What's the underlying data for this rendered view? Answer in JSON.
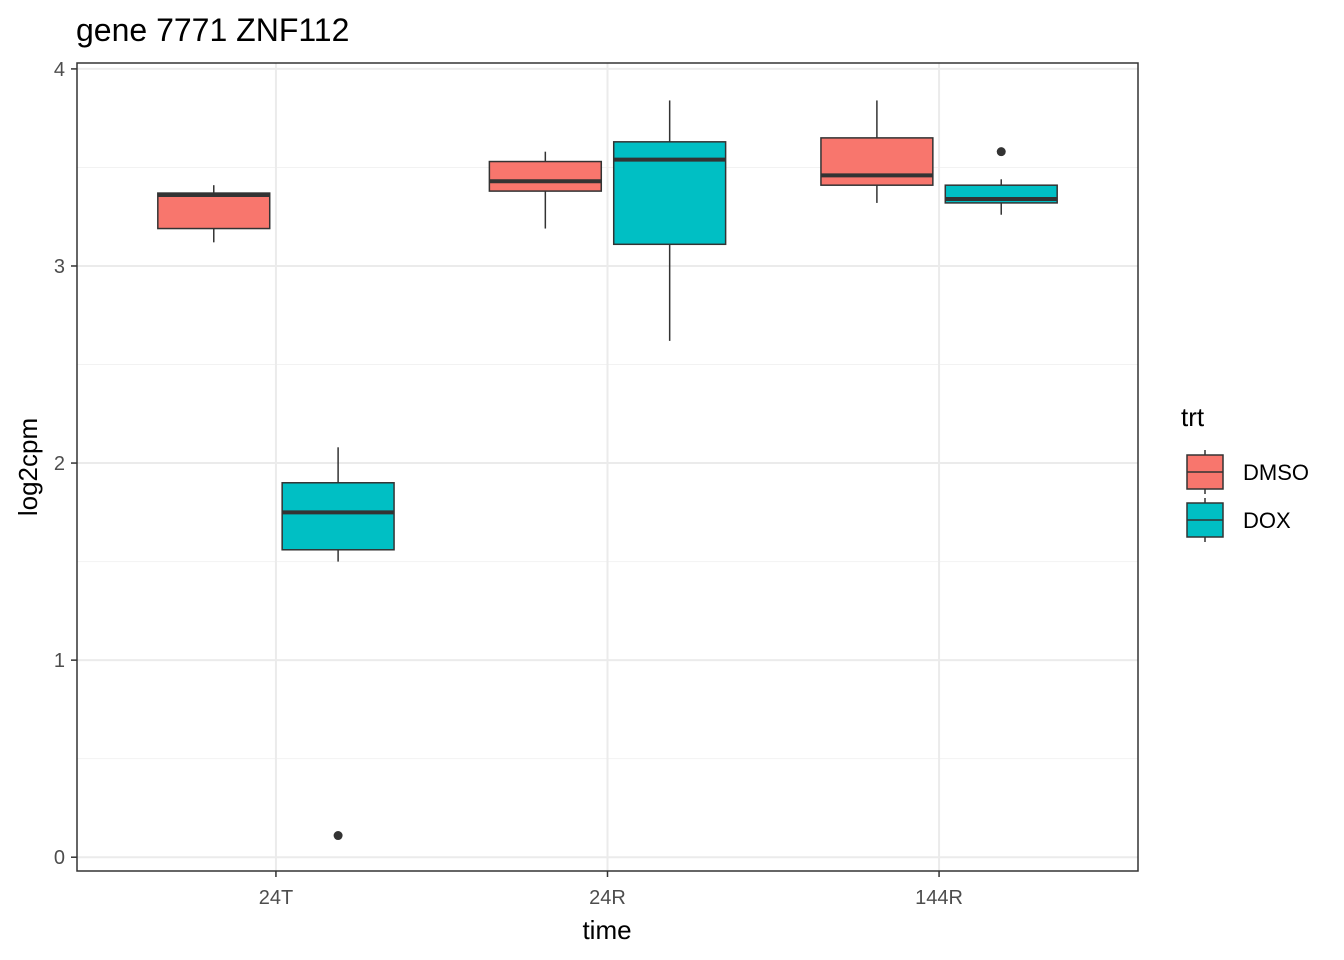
{
  "chart_data": {
    "type": "boxplot",
    "title": "gene 7771 ZNF112",
    "xlabel": "time",
    "ylabel": "log2cpm",
    "categories": [
      "24T",
      "24R",
      "144R"
    ],
    "ylim": [
      -0.07,
      4.03
    ],
    "yticks": [
      0,
      1,
      2,
      3,
      4
    ],
    "grid": true,
    "legend": {
      "title": "trt",
      "position": "right"
    },
    "series": [
      {
        "name": "DMSO",
        "color": "#F8766D",
        "boxes": [
          {
            "whisker_low": 3.12,
            "q1": 3.19,
            "median": 3.36,
            "q3": 3.37,
            "whisker_high": 3.41,
            "outliers": []
          },
          {
            "whisker_low": 3.19,
            "q1": 3.38,
            "median": 3.43,
            "q3": 3.53,
            "whisker_high": 3.58,
            "outliers": []
          },
          {
            "whisker_low": 3.32,
            "q1": 3.41,
            "median": 3.46,
            "q3": 3.65,
            "whisker_high": 3.84,
            "outliers": []
          }
        ]
      },
      {
        "name": "DOX",
        "color": "#00BFC4",
        "boxes": [
          {
            "whisker_low": 1.5,
            "q1": 1.56,
            "median": 1.75,
            "q3": 1.9,
            "whisker_high": 2.08,
            "outliers": [
              0.11
            ]
          },
          {
            "whisker_low": 2.62,
            "q1": 3.11,
            "median": 3.54,
            "q3": 3.63,
            "whisker_high": 3.84,
            "outliers": []
          },
          {
            "whisker_low": 3.26,
            "q1": 3.32,
            "median": 3.34,
            "q3": 3.41,
            "whisker_high": 3.44,
            "outliers": [
              3.58
            ]
          }
        ]
      }
    ]
  }
}
